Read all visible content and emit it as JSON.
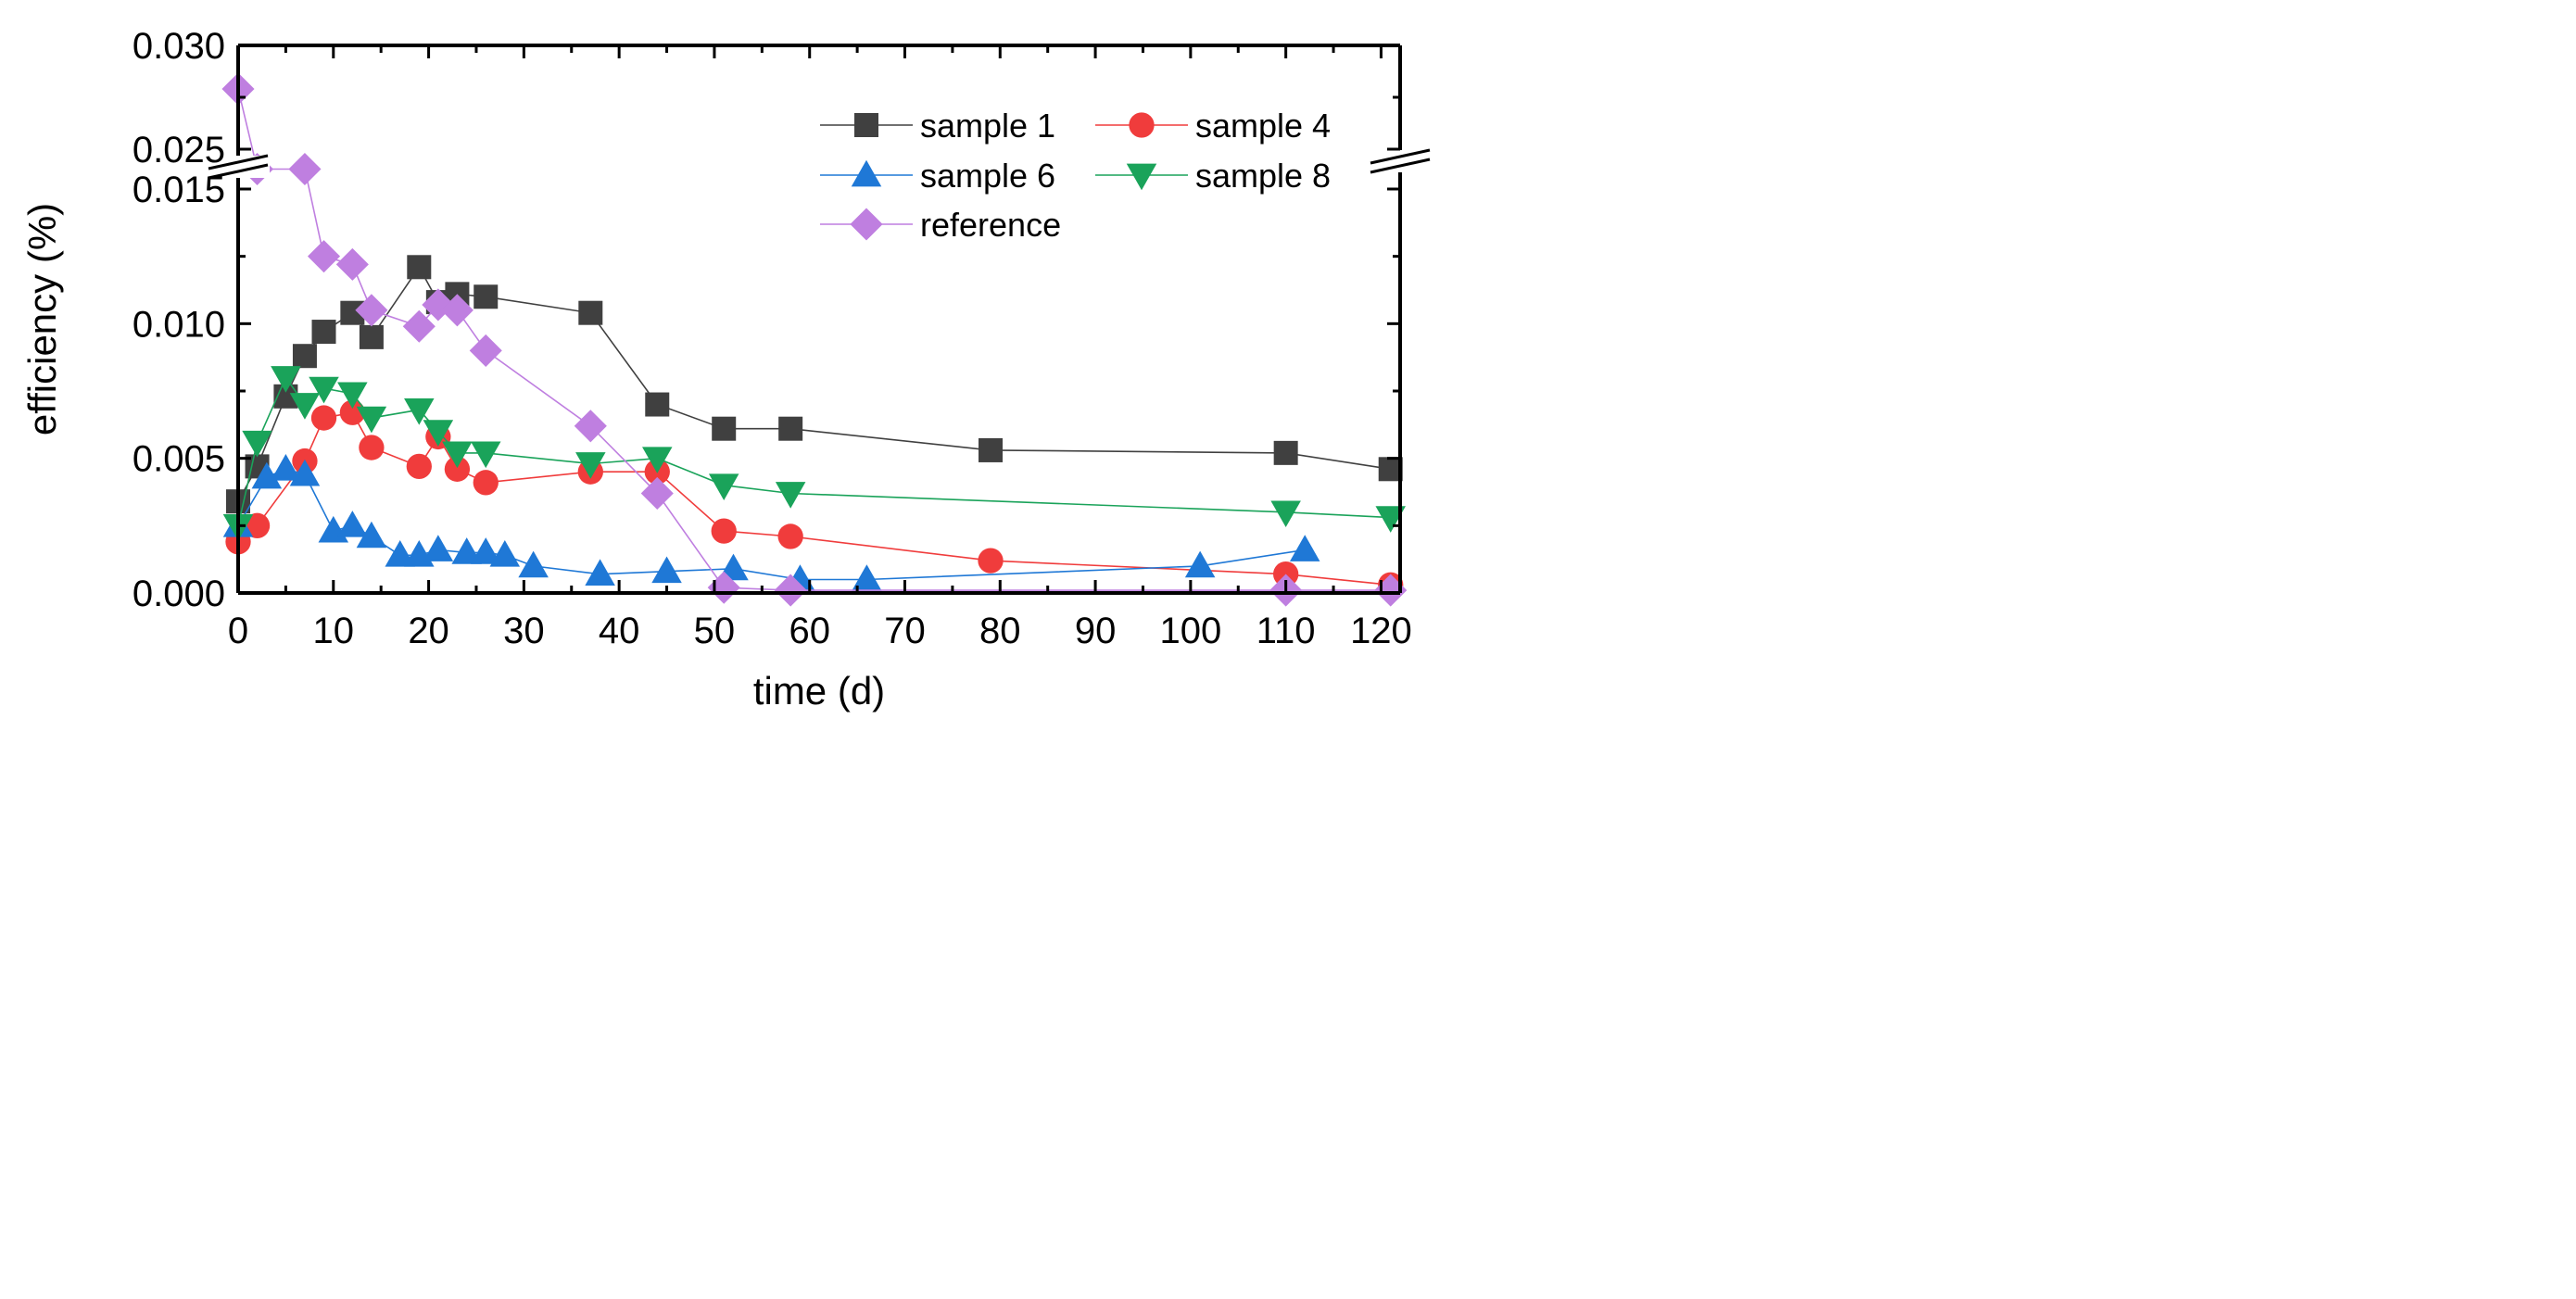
{
  "chart_data": {
    "type": "line",
    "xlabel": "time (d)",
    "ylabel": "efficiency (%)",
    "xlim": [
      0,
      122
    ],
    "ylim_lower": [
      0,
      0.015
    ],
    "ylim_upper": [
      0.025,
      0.03
    ],
    "axis_break": "y between 0.015 and 0.025",
    "x_ticks": [
      "0",
      "10",
      "20",
      "30",
      "40",
      "50",
      "60",
      "70",
      "80",
      "90",
      "100",
      "110",
      "120"
    ],
    "x_tick_values": [
      0,
      10,
      20,
      30,
      40,
      50,
      60,
      70,
      80,
      90,
      100,
      110,
      120
    ],
    "y_ticks": [
      {
        "value": 0.0,
        "label": "0.000"
      },
      {
        "value": 0.005,
        "label": "0.005"
      },
      {
        "value": 0.01,
        "label": "0.010"
      },
      {
        "value": 0.015,
        "label": "0.015"
      },
      {
        "value": 0.025,
        "label": "0.025"
      },
      {
        "value": 0.03,
        "label": "0.030"
      }
    ],
    "legend_position": "top-right",
    "series": [
      {
        "name": "sample 1",
        "color": "#404040",
        "marker": "square",
        "x": [
          0,
          2,
          5,
          7,
          9,
          12,
          14,
          19,
          21,
          23,
          26,
          37,
          44,
          51,
          58,
          79,
          110,
          121
        ],
        "y": [
          0.0034,
          0.0047,
          0.0073,
          0.0088,
          0.0097,
          0.0104,
          0.0095,
          0.0121,
          0.0108,
          0.0111,
          0.011,
          0.0104,
          0.007,
          0.0061,
          0.0061,
          0.0053,
          0.0052,
          0.0046
        ]
      },
      {
        "name": "sample 4",
        "color": "#f03c3c",
        "marker": "circle",
        "x": [
          0,
          2,
          7,
          9,
          12,
          14,
          19,
          21,
          23,
          26,
          37,
          44,
          51,
          58,
          79,
          110,
          121
        ],
        "y": [
          0.0019,
          0.0025,
          0.0049,
          0.0065,
          0.0067,
          0.0054,
          0.0047,
          0.0058,
          0.0046,
          0.0041,
          0.0045,
          0.0045,
          0.0023,
          0.0021,
          0.0012,
          0.0007,
          0.0003
        ]
      },
      {
        "name": "sample 6",
        "color": "#1f78d6",
        "marker": "triangle-up",
        "x": [
          0,
          3,
          5,
          7,
          10,
          12,
          14,
          17,
          19,
          21,
          24,
          26,
          28,
          31,
          38,
          45,
          52,
          59,
          66,
          101,
          112
        ],
        "y": [
          0.0025,
          0.0043,
          0.0046,
          0.0044,
          0.0023,
          0.0025,
          0.0021,
          0.0014,
          0.0014,
          0.0016,
          0.0015,
          0.0015,
          0.0014,
          0.001,
          0.0007,
          0.0008,
          0.0009,
          0.0005,
          0.0005,
          0.001,
          0.0016
        ]
      },
      {
        "name": "sample 8",
        "color": "#1aa35a",
        "marker": "triangle-down",
        "x": [
          0,
          2,
          5,
          7,
          9,
          12,
          14,
          19,
          21,
          23,
          26,
          37,
          44,
          51,
          58,
          110,
          121
        ],
        "y": [
          0.0025,
          0.0056,
          0.008,
          0.007,
          0.0076,
          0.0074,
          0.0065,
          0.0068,
          0.006,
          0.0052,
          0.0052,
          0.0048,
          0.005,
          0.004,
          0.0037,
          0.003,
          0.0028
        ]
      },
      {
        "name": "reference",
        "color": "#bf7fe0",
        "marker": "diamond",
        "x": [
          0,
          2,
          7,
          9,
          12,
          14,
          19,
          21,
          23,
          26,
          37,
          44,
          51,
          58,
          110,
          121
        ],
        "y": [
          0.0279,
          0.0246,
          0.0151,
          0.0125,
          0.0122,
          0.0105,
          0.0099,
          0.0107,
          0.0105,
          0.009,
          0.0062,
          0.0037,
          0.0002,
          0.0001,
          0.0001,
          0.0001
        ]
      }
    ]
  }
}
